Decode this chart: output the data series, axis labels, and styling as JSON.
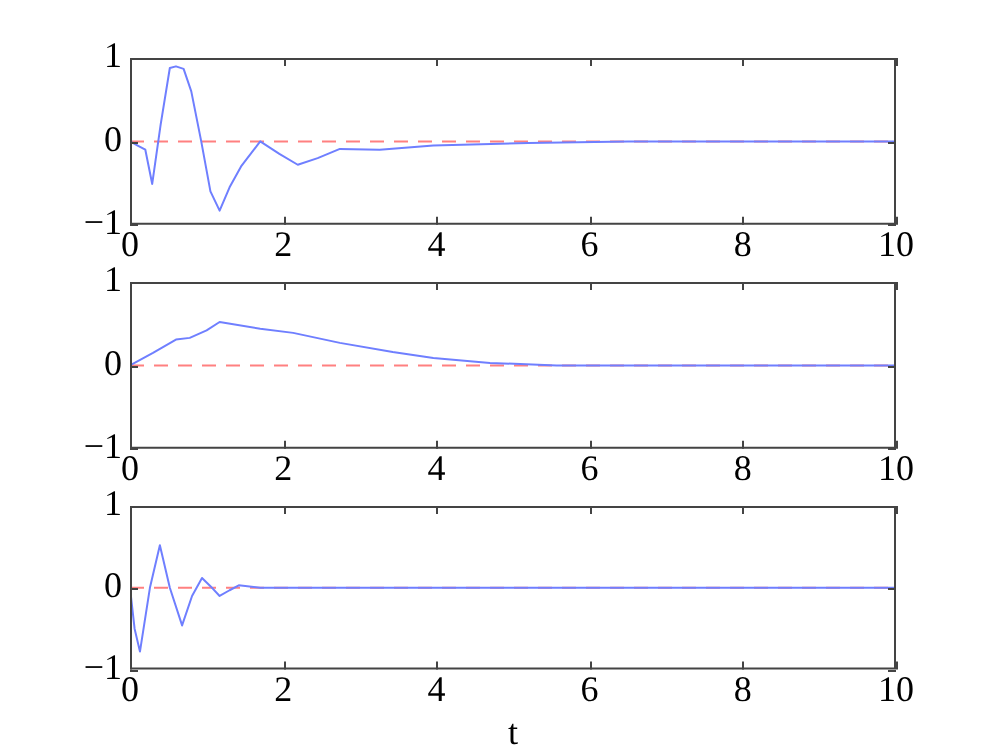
{
  "chart_data": [
    {
      "type": "line",
      "x": [
        0,
        0.1,
        0.2,
        0.29,
        0.4,
        0.52,
        0.6,
        0.7,
        0.8,
        0.93,
        1.05,
        1.17,
        1.3,
        1.45,
        1.7,
        1.95,
        2.19,
        2.45,
        2.74,
        3.26,
        3.96,
        5.2,
        6.5,
        8,
        10
      ],
      "series": [
        {
          "color": "#6f7fff",
          "values": [
            0,
            -0.05,
            -0.1,
            -0.51,
            0.2,
            0.88,
            0.9,
            0.87,
            0.6,
            0,
            -0.6,
            -0.83,
            -0.55,
            -0.3,
            0,
            -0.15,
            -0.28,
            -0.2,
            -0.09,
            -0.1,
            -0.05,
            -0.02,
            0,
            0,
            0
          ]
        }
      ],
      "xlim": [
        0,
        10
      ],
      "xticks": [
        0,
        2,
        4,
        6,
        8,
        10
      ],
      "ylim": [
        -1,
        1
      ],
      "yticks": [
        -1,
        0,
        1
      ],
      "grid": false,
      "legend": false,
      "marker": "none",
      "line_style": "solid",
      "ref_lines": [
        {
          "axis": "y",
          "value": 0,
          "color": "#ff8080",
          "line_style": "dashed"
        }
      ]
    },
    {
      "type": "line",
      "x": [
        0,
        0.3,
        0.6,
        0.78,
        1.0,
        1.17,
        1.7,
        2.13,
        2.74,
        3.43,
        3.96,
        4.7,
        5.57,
        7,
        10
      ],
      "series": [
        {
          "color": "#6f7fff",
          "values": [
            0,
            0.15,
            0.31,
            0.33,
            0.42,
            0.52,
            0.44,
            0.39,
            0.27,
            0.16,
            0.09,
            0.03,
            0,
            0,
            0
          ]
        }
      ],
      "xlim": [
        0,
        10
      ],
      "xticks": [
        0,
        2,
        4,
        6,
        8,
        10
      ],
      "ylim": [
        -1,
        1
      ],
      "yticks": [
        -1,
        0,
        1
      ],
      "grid": false,
      "legend": false,
      "marker": "none",
      "line_style": "solid",
      "ref_lines": [
        {
          "axis": "y",
          "value": 0,
          "color": "#ff8080",
          "line_style": "dashed"
        }
      ]
    },
    {
      "type": "line",
      "x": [
        0,
        0.06,
        0.13,
        0.26,
        0.39,
        0.52,
        0.68,
        0.81,
        0.94,
        1.05,
        1.17,
        1.3,
        1.42,
        1.7,
        3,
        10
      ],
      "series": [
        {
          "color": "#6f7fff",
          "values": [
            0,
            -0.5,
            -0.78,
            0,
            0.52,
            0,
            -0.46,
            -0.1,
            0.12,
            0.02,
            -0.1,
            -0.03,
            0.03,
            0,
            0,
            0
          ]
        }
      ],
      "xlim": [
        0,
        10
      ],
      "xticks": [
        0,
        2,
        4,
        6,
        8,
        10
      ],
      "ylim": [
        -1,
        1
      ],
      "yticks": [
        -1,
        0,
        1
      ],
      "grid": false,
      "legend": false,
      "marker": "none",
      "line_style": "solid",
      "xlabel": "t",
      "ref_lines": [
        {
          "axis": "y",
          "value": 0,
          "color": "#ff8080",
          "line_style": "dashed"
        }
      ]
    }
  ]
}
